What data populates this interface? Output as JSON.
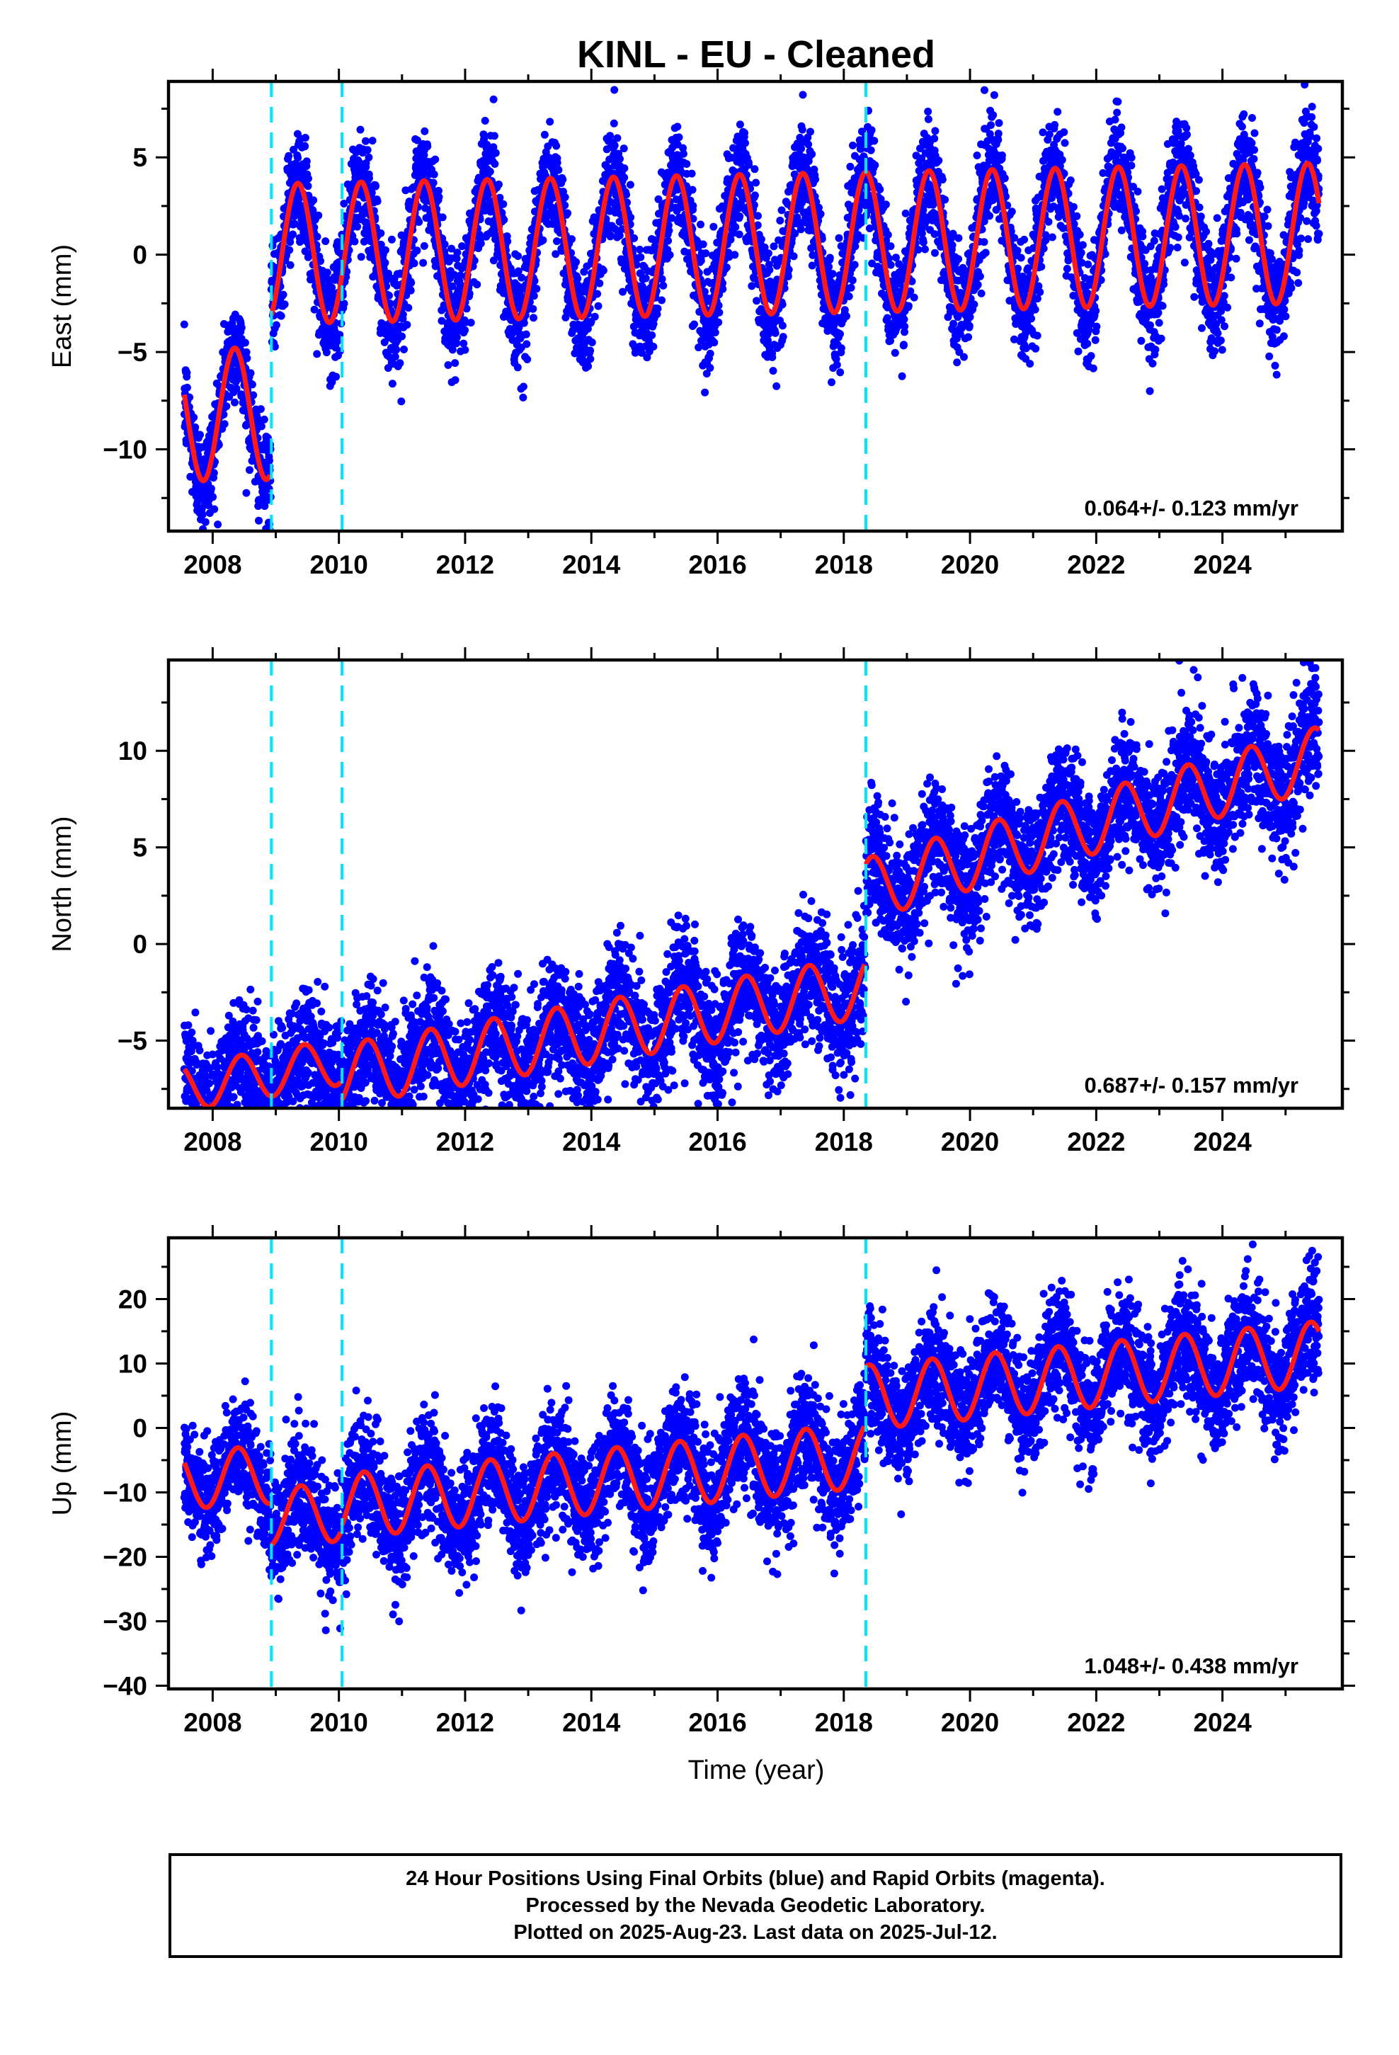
{
  "title": "KINL  - EU - Cleaned",
  "xlabel": "Time (year)",
  "footer": {
    "line1": "24 Hour Positions Using Final Orbits (blue) and Rapid Orbits (magenta).",
    "line2": "Processed by the Nevada Geodetic Laboratory.",
    "line3": "Plotted on 2025-Aug-23. Last data on 2025-Jul-12."
  },
  "colors": {
    "points": "#0000ff",
    "model": "#ff1a1a",
    "events": "#00e5ff",
    "frame": "#000000"
  },
  "chart_data": [
    {
      "type": "scatter",
      "name": "east",
      "ylabel": "East (mm)",
      "xlim": [
        2007.3,
        2025.9
      ],
      "ylim": [
        -14.2,
        8.9
      ],
      "yticks": [
        5,
        0,
        -5,
        -10
      ],
      "xticks": [
        2008,
        2010,
        2012,
        2014,
        2016,
        2018,
        2020,
        2022,
        2024
      ],
      "rate_label": "0.064+/- 0.123 mm/yr",
      "events": [
        2008.93,
        2010.05,
        2018.35
      ],
      "segments": [
        {
          "x0": 2007.55,
          "x1": 2008.92,
          "offset": -7.7,
          "slope": 0.064,
          "amplitude": 3.4,
          "phase": 0.35,
          "scatter": 1.3
        },
        {
          "x0": 2008.93,
          "x1": 2025.53,
          "offset": 0.5,
          "slope": 0.064,
          "amplitude": 3.6,
          "phase": 0.35,
          "scatter": 1.4
        }
      ]
    },
    {
      "type": "scatter",
      "name": "north",
      "ylabel": "North (mm)",
      "xlim": [
        2007.3,
        2025.9
      ],
      "ylim": [
        -8.5,
        14.7
      ],
      "yticks": [
        10,
        5,
        0,
        -5
      ],
      "xticks": [
        2008,
        2010,
        2012,
        2014,
        2016,
        2018,
        2020,
        2022,
        2024
      ],
      "rate_label": "0.687+/- 0.157 mm/yr",
      "events": [
        2008.93,
        2010.05,
        2018.35
      ],
      "segments": [
        {
          "x0": 2007.55,
          "x1": 2010.04,
          "offset": -2.8,
          "slope": 0.55,
          "amplitude": 1.2,
          "phase": 0.45,
          "scatter": 1.5
        },
        {
          "x0": 2010.05,
          "x1": 2018.34,
          "offset": -3.5,
          "slope": 0.55,
          "amplitude": 1.6,
          "phase": 0.45,
          "scatter": 1.6
        },
        {
          "x0": 2018.35,
          "x1": 2025.53,
          "offset": 0.6,
          "slope": 0.95,
          "amplitude": 1.6,
          "phase": 0.45,
          "scatter": 1.6
        }
      ]
    },
    {
      "type": "scatter",
      "name": "up",
      "ylabel": "Up (mm)",
      "xlim": [
        2007.3,
        2025.9
      ],
      "ylim": [
        -40.5,
        29.5
      ],
      "yticks": [
        20,
        10,
        0,
        -10,
        -20,
        -30,
        -40
      ],
      "xticks": [
        2008,
        2010,
        2012,
        2014,
        2016,
        2018,
        2020,
        2022,
        2024
      ],
      "rate_label": "1.048+/- 0.438 mm/yr",
      "events": [
        2008.93,
        2010.05,
        2018.35
      ],
      "segments": [
        {
          "x0": 2007.55,
          "x1": 2008.92,
          "offset": -3.0,
          "slope": 0.6,
          "amplitude": 4.5,
          "phase": 0.4,
          "scatter": 4.0
        },
        {
          "x0": 2008.93,
          "x1": 2010.04,
          "offset": -9.5,
          "slope": 0.6,
          "amplitude": 4.5,
          "phase": 0.4,
          "scatter": 4.5
        },
        {
          "x0": 2010.05,
          "x1": 2018.34,
          "offset": -6.5,
          "slope": 0.95,
          "amplitude": 5.0,
          "phase": 0.4,
          "scatter": 4.5
        },
        {
          "x0": 2018.35,
          "x1": 2025.53,
          "offset": 2.5,
          "slope": 0.95,
          "amplitude": 5.0,
          "phase": 0.4,
          "scatter": 4.5
        }
      ]
    }
  ]
}
